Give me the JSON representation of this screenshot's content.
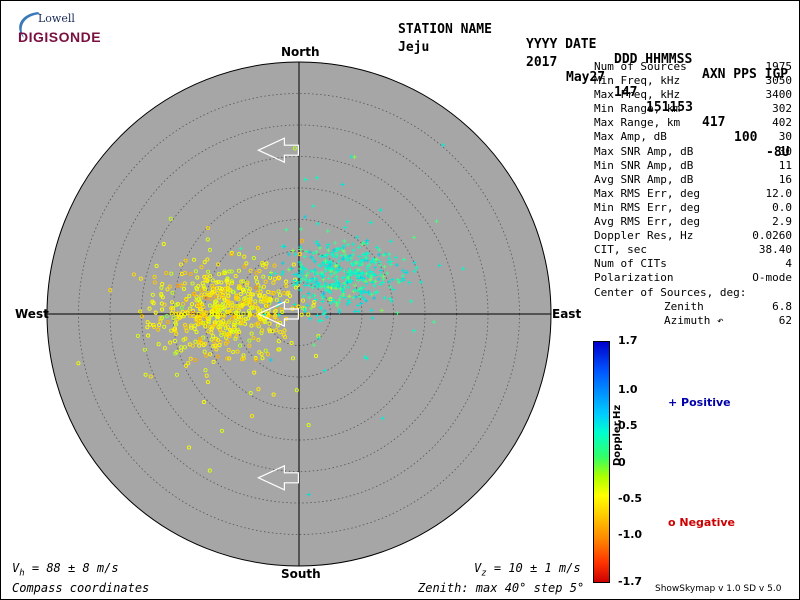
{
  "logo": {
    "top": "Lowell",
    "bottom": "DIGISONDE"
  },
  "header": {
    "station_label": "STATION NAME",
    "date_label": "YYYY DATE",
    "time_label": "DDD HHMMSS",
    "codes_label": "AXN PPS IGP",
    "station": "Jeju",
    "year": "2017",
    "date": "May27",
    "doy": "147",
    "time": "151153",
    "axn": "417",
    "pps": "100",
    "igp": "-8U"
  },
  "directions": {
    "north": "North",
    "south": "South",
    "west": "West",
    "east": "East"
  },
  "stats": [
    {
      "label": "Num of Sources",
      "value": "1975"
    },
    {
      "label": "Min Freq, kHz",
      "value": "3050"
    },
    {
      "label": "Max Freq, kHz",
      "value": "3400"
    },
    {
      "label": "Min Range, km",
      "value": "302"
    },
    {
      "label": "Max Range, km",
      "value": "402"
    },
    {
      "label": "Max Amp, dB",
      "value": "30"
    },
    {
      "label": "Max SNR Amp, dB",
      "value": "30"
    },
    {
      "label": "Min SNR Amp, dB",
      "value": "11"
    },
    {
      "label": "Avg SNR Amp, dB",
      "value": "16"
    },
    {
      "label": "Max RMS Err, deg",
      "value": "12.0"
    },
    {
      "label": "Min RMS Err, deg",
      "value": "0.0"
    },
    {
      "label": "Avg RMS Err, deg",
      "value": "2.9"
    },
    {
      "label": "Doppler Res, Hz",
      "value": "0.0260"
    },
    {
      "label": "CIT, sec",
      "value": "38.40"
    },
    {
      "label": "Num of CITs",
      "value": "4"
    },
    {
      "label": "Polarization",
      "value": "O-mode"
    },
    {
      "label": "Center of Sources, deg:",
      "value": ""
    },
    {
      "label": "Zenith",
      "value": "6.8",
      "indent": true
    },
    {
      "label": "Azimuth ↶",
      "value": "62",
      "indent": true
    }
  ],
  "colorbar": {
    "ticks": [
      "1.7",
      "1.0",
      "0.5",
      "0",
      "-0.5",
      "-1.0",
      "-1.7"
    ],
    "label": "Doppler,Hz",
    "positive": "+ Positive",
    "negative": "o Negative"
  },
  "footer": {
    "vh_prefix": "V",
    "vh_sub": "h",
    "vh_value": " = 88 ± 8 m/s",
    "vz_prefix": "V",
    "vz_sub": "z",
    "vz_value": " = 10 ± 1 m/s",
    "coords": "Compass coordinates",
    "zenith": "Zenith: max 40°  step 5°",
    "version": "ShowSkymap v 1.0   SD v 5.0"
  },
  "chart_data": {
    "type": "scatter",
    "zenith_max_deg": 40,
    "zenith_step_deg": 5,
    "num_sources": 1975,
    "center_zenith_deg": 6.8,
    "center_azimuth_deg": 62,
    "doppler_range_hz": [
      -1.7,
      1.7
    ],
    "clusters": [
      {
        "name": "Negative",
        "marker": "o",
        "center_east_deg": -12,
        "center_north_deg": 0.5,
        "spread_deg": 6,
        "doppler_hz": -0.45,
        "count": 1150
      },
      {
        "name": "Positive",
        "marker": "+",
        "center_east_deg": 7,
        "center_north_deg": 6,
        "spread_deg": 5,
        "doppler_hz": 0.45,
        "count": 825
      }
    ],
    "arrows": [
      {
        "east_deg": -2,
        "north_deg": 26,
        "direction": "west"
      },
      {
        "east_deg": -2,
        "north_deg": 0,
        "direction": "west"
      },
      {
        "east_deg": -2,
        "north_deg": -26,
        "direction": "west"
      }
    ]
  }
}
